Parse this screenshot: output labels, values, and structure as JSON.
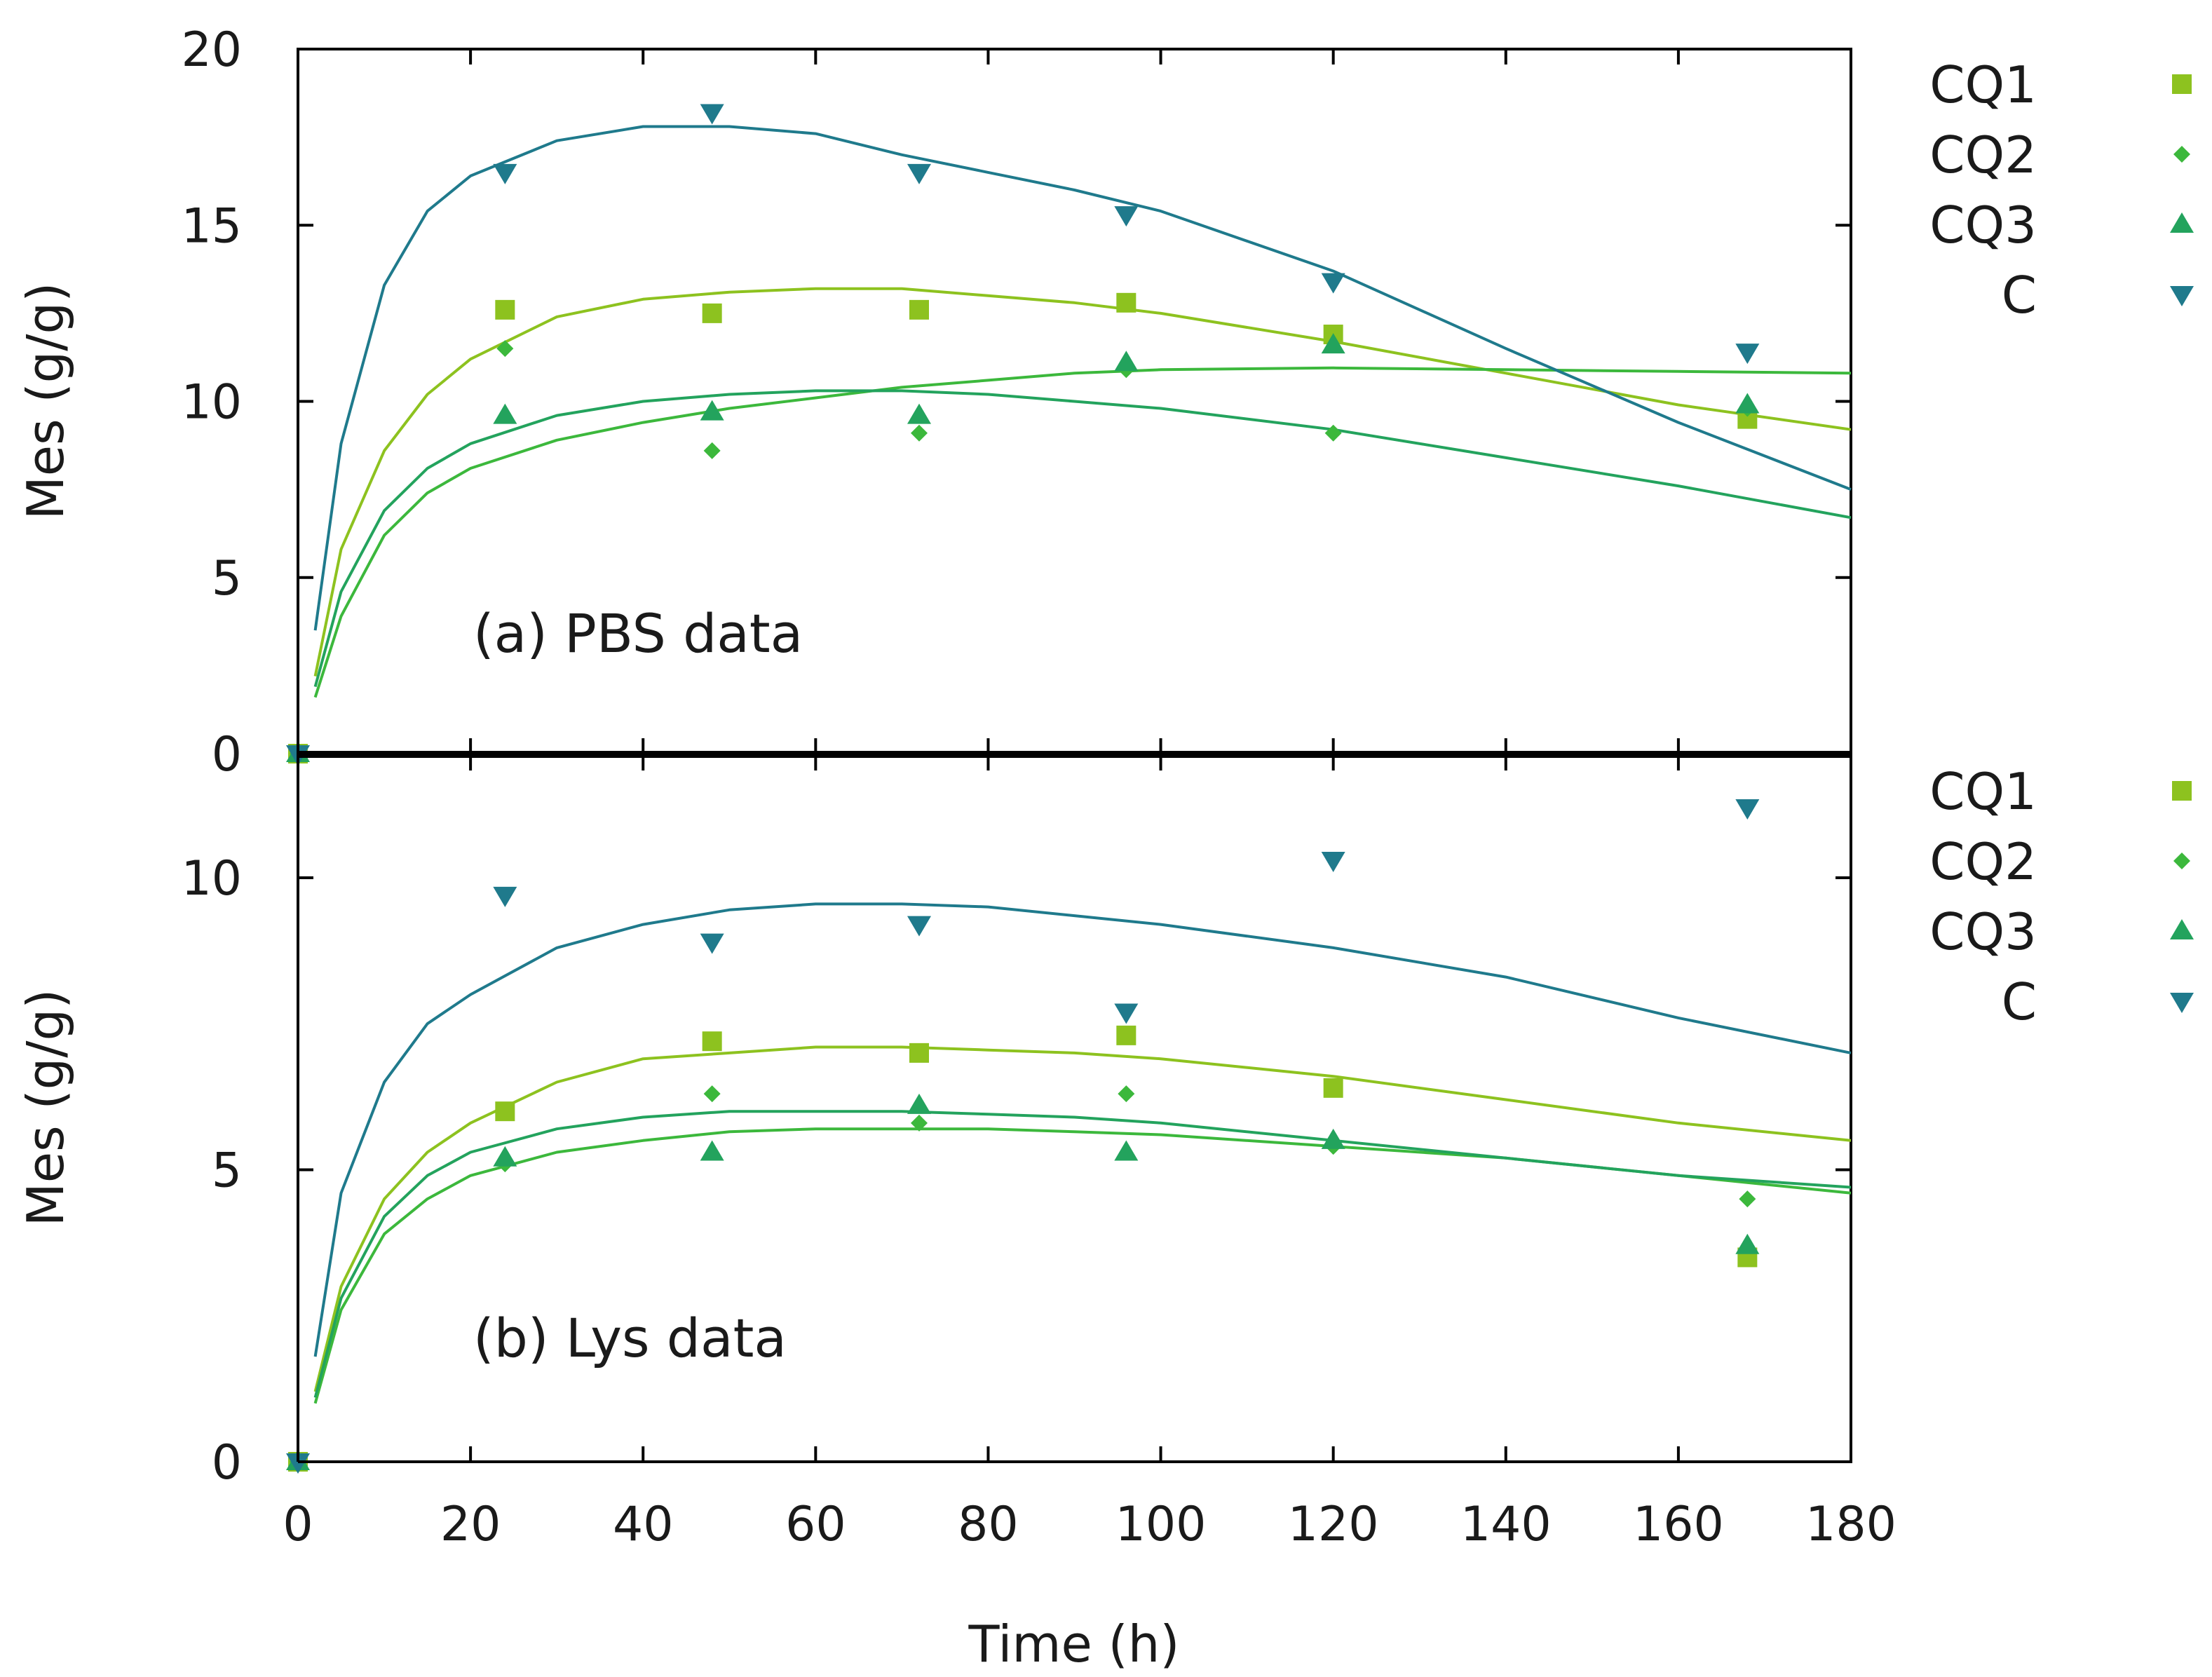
{
  "chart_data": [
    {
      "type": "scatter",
      "panel": "top",
      "annotation": "(a) PBS data",
      "title": "",
      "xlabel": "",
      "ylabel": "Mes (g/g)",
      "xlim": [
        0,
        180
      ],
      "ylim": [
        0,
        20
      ],
      "yticks": [
        "0",
        "5",
        "10",
        "15",
        "20"
      ],
      "grid": false,
      "legend_position": "right",
      "series": [
        {
          "name": "CQ1",
          "color": "#8dc21f",
          "marker": "square",
          "points": [
            [
              0,
              0
            ],
            [
              24,
              12.6
            ],
            [
              48,
              12.5
            ],
            [
              72,
              12.6
            ],
            [
              96,
              12.8
            ],
            [
              120,
              11.9
            ],
            [
              168,
              9.5
            ]
          ],
          "fit": [
            [
              2,
              2.2
            ],
            [
              5,
              5.8
            ],
            [
              10,
              8.6
            ],
            [
              15,
              10.2
            ],
            [
              20,
              11.2
            ],
            [
              30,
              12.4
            ],
            [
              40,
              12.9
            ],
            [
              50,
              13.1
            ],
            [
              60,
              13.2
            ],
            [
              70,
              13.2
            ],
            [
              80,
              13.0
            ],
            [
              90,
              12.8
            ],
            [
              100,
              12.5
            ],
            [
              120,
              11.7
            ],
            [
              140,
              10.8
            ],
            [
              160,
              9.9
            ],
            [
              180,
              9.2
            ]
          ]
        },
        {
          "name": "CQ2",
          "color": "#3cb83c",
          "marker": "diamond",
          "points": [
            [
              0,
              0
            ],
            [
              24,
              11.5
            ],
            [
              48,
              8.6
            ],
            [
              72,
              9.1
            ],
            [
              96,
              10.9
            ],
            [
              120,
              9.1
            ],
            [
              168,
              9.8
            ]
          ],
          "fit": [
            [
              2,
              1.6
            ],
            [
              5,
              3.9
            ],
            [
              10,
              6.2
            ],
            [
              15,
              7.4
            ],
            [
              20,
              8.1
            ],
            [
              30,
              8.9
            ],
            [
              40,
              9.4
            ],
            [
              50,
              9.8
            ],
            [
              60,
              10.1
            ],
            [
              70,
              10.4
            ],
            [
              80,
              10.6
            ],
            [
              90,
              10.8
            ],
            [
              100,
              10.9
            ],
            [
              120,
              10.95
            ],
            [
              140,
              10.9
            ],
            [
              160,
              10.85
            ],
            [
              180,
              10.8
            ]
          ]
        },
        {
          "name": "CQ3",
          "color": "#23a35d",
          "marker": "triangle-up",
          "points": [
            [
              0,
              0
            ],
            [
              24,
              9.6
            ],
            [
              48,
              9.7
            ],
            [
              72,
              9.6
            ],
            [
              96,
              11.1
            ],
            [
              120,
              11.6
            ],
            [
              168,
              9.9
            ]
          ],
          "fit": [
            [
              2,
              1.9
            ],
            [
              5,
              4.6
            ],
            [
              10,
              6.9
            ],
            [
              15,
              8.1
            ],
            [
              20,
              8.8
            ],
            [
              30,
              9.6
            ],
            [
              40,
              10.0
            ],
            [
              50,
              10.2
            ],
            [
              60,
              10.3
            ],
            [
              70,
              10.3
            ],
            [
              80,
              10.2
            ],
            [
              90,
              10.0
            ],
            [
              100,
              9.8
            ],
            [
              120,
              9.2
            ],
            [
              140,
              8.4
            ],
            [
              160,
              7.6
            ],
            [
              180,
              6.7
            ]
          ]
        },
        {
          "name": "C",
          "color": "#1f7a8c",
          "marker": "triangle-down",
          "points": [
            [
              0,
              0
            ],
            [
              24,
              16.5
            ],
            [
              48,
              18.2
            ],
            [
              72,
              16.5
            ],
            [
              96,
              15.3
            ],
            [
              120,
              13.4
            ],
            [
              168,
              11.4
            ]
          ],
          "fit": [
            [
              2,
              3.5
            ],
            [
              5,
              8.8
            ],
            [
              10,
              13.3
            ],
            [
              15,
              15.4
            ],
            [
              20,
              16.4
            ],
            [
              30,
              17.4
            ],
            [
              40,
              17.8
            ],
            [
              50,
              17.8
            ],
            [
              60,
              17.6
            ],
            [
              70,
              17.0
            ],
            [
              80,
              16.5
            ],
            [
              90,
              16.0
            ],
            [
              100,
              15.4
            ],
            [
              120,
              13.7
            ],
            [
              140,
              11.5
            ],
            [
              160,
              9.4
            ],
            [
              180,
              7.5
            ]
          ]
        }
      ]
    },
    {
      "type": "scatter",
      "panel": "bottom",
      "annotation": "(b) Lys data",
      "title": "",
      "xlabel": "Time (h)",
      "ylabel": "Mes (g/g)",
      "xlim": [
        0,
        180
      ],
      "ylim": [
        0,
        12.1
      ],
      "xticks": [
        "0",
        "20",
        "40",
        "60",
        "80",
        "100",
        "120",
        "140",
        "160",
        "180"
      ],
      "yticks": [
        "0",
        "5",
        "10"
      ],
      "grid": false,
      "legend_position": "right",
      "series": [
        {
          "name": "CQ1",
          "color": "#8dc21f",
          "marker": "square",
          "points": [
            [
              0,
              0
            ],
            [
              24,
              6.0
            ],
            [
              48,
              7.2
            ],
            [
              72,
              7.0
            ],
            [
              96,
              7.3
            ],
            [
              120,
              6.4
            ],
            [
              168,
              3.5
            ]
          ],
          "fit": [
            [
              2,
              1.2
            ],
            [
              5,
              3.0
            ],
            [
              10,
              4.5
            ],
            [
              15,
              5.3
            ],
            [
              20,
              5.8
            ],
            [
              30,
              6.5
            ],
            [
              40,
              6.9
            ],
            [
              50,
              7.0
            ],
            [
              60,
              7.1
            ],
            [
              70,
              7.1
            ],
            [
              80,
              7.05
            ],
            [
              90,
              7.0
            ],
            [
              100,
              6.9
            ],
            [
              120,
              6.6
            ],
            [
              140,
              6.2
            ],
            [
              160,
              5.8
            ],
            [
              180,
              5.5
            ]
          ]
        },
        {
          "name": "CQ2",
          "color": "#3cb83c",
          "marker": "diamond",
          "points": [
            [
              0,
              0
            ],
            [
              24,
              5.1
            ],
            [
              48,
              6.3
            ],
            [
              72,
              5.8
            ],
            [
              96,
              6.3
            ],
            [
              120,
              5.4
            ],
            [
              168,
              4.5
            ]
          ],
          "fit": [
            [
              2,
              1.0
            ],
            [
              5,
              2.6
            ],
            [
              10,
              3.9
            ],
            [
              15,
              4.5
            ],
            [
              20,
              4.9
            ],
            [
              30,
              5.3
            ],
            [
              40,
              5.5
            ],
            [
              50,
              5.65
            ],
            [
              60,
              5.7
            ],
            [
              70,
              5.7
            ],
            [
              80,
              5.7
            ],
            [
              90,
              5.65
            ],
            [
              100,
              5.6
            ],
            [
              120,
              5.4
            ],
            [
              140,
              5.2
            ],
            [
              160,
              4.9
            ],
            [
              180,
              4.6
            ]
          ]
        },
        {
          "name": "CQ3",
          "color": "#23a35d",
          "marker": "triangle-up",
          "points": [
            [
              0,
              0
            ],
            [
              24,
              5.2
            ],
            [
              48,
              5.3
            ],
            [
              72,
              6.1
            ],
            [
              96,
              5.3
            ],
            [
              120,
              5.5
            ],
            [
              168,
              3.7
            ]
          ],
          "fit": [
            [
              2,
              1.1
            ],
            [
              5,
              2.8
            ],
            [
              10,
              4.2
            ],
            [
              15,
              4.9
            ],
            [
              20,
              5.3
            ],
            [
              30,
              5.7
            ],
            [
              40,
              5.9
            ],
            [
              50,
              6.0
            ],
            [
              60,
              6.0
            ],
            [
              70,
              6.0
            ],
            [
              80,
              5.95
            ],
            [
              90,
              5.9
            ],
            [
              100,
              5.8
            ],
            [
              120,
              5.5
            ],
            [
              140,
              5.2
            ],
            [
              160,
              4.9
            ],
            [
              180,
              4.7
            ]
          ]
        },
        {
          "name": "C",
          "color": "#1f7a8c",
          "marker": "triangle-down",
          "points": [
            [
              0,
              0
            ],
            [
              24,
              9.7
            ],
            [
              48,
              8.9
            ],
            [
              72,
              9.2
            ],
            [
              96,
              7.7
            ],
            [
              120,
              10.3
            ],
            [
              168,
              11.2
            ]
          ],
          "fit": [
            [
              2,
              1.8
            ],
            [
              5,
              4.6
            ],
            [
              10,
              6.5
            ],
            [
              15,
              7.5
            ],
            [
              20,
              8.0
            ],
            [
              30,
              8.8
            ],
            [
              40,
              9.2
            ],
            [
              50,
              9.45
            ],
            [
              60,
              9.55
            ],
            [
              70,
              9.55
            ],
            [
              80,
              9.5
            ],
            [
              90,
              9.35
            ],
            [
              100,
              9.2
            ],
            [
              120,
              8.8
            ],
            [
              140,
              8.3
            ],
            [
              160,
              7.6
            ],
            [
              180,
              7.0
            ]
          ]
        }
      ]
    }
  ]
}
